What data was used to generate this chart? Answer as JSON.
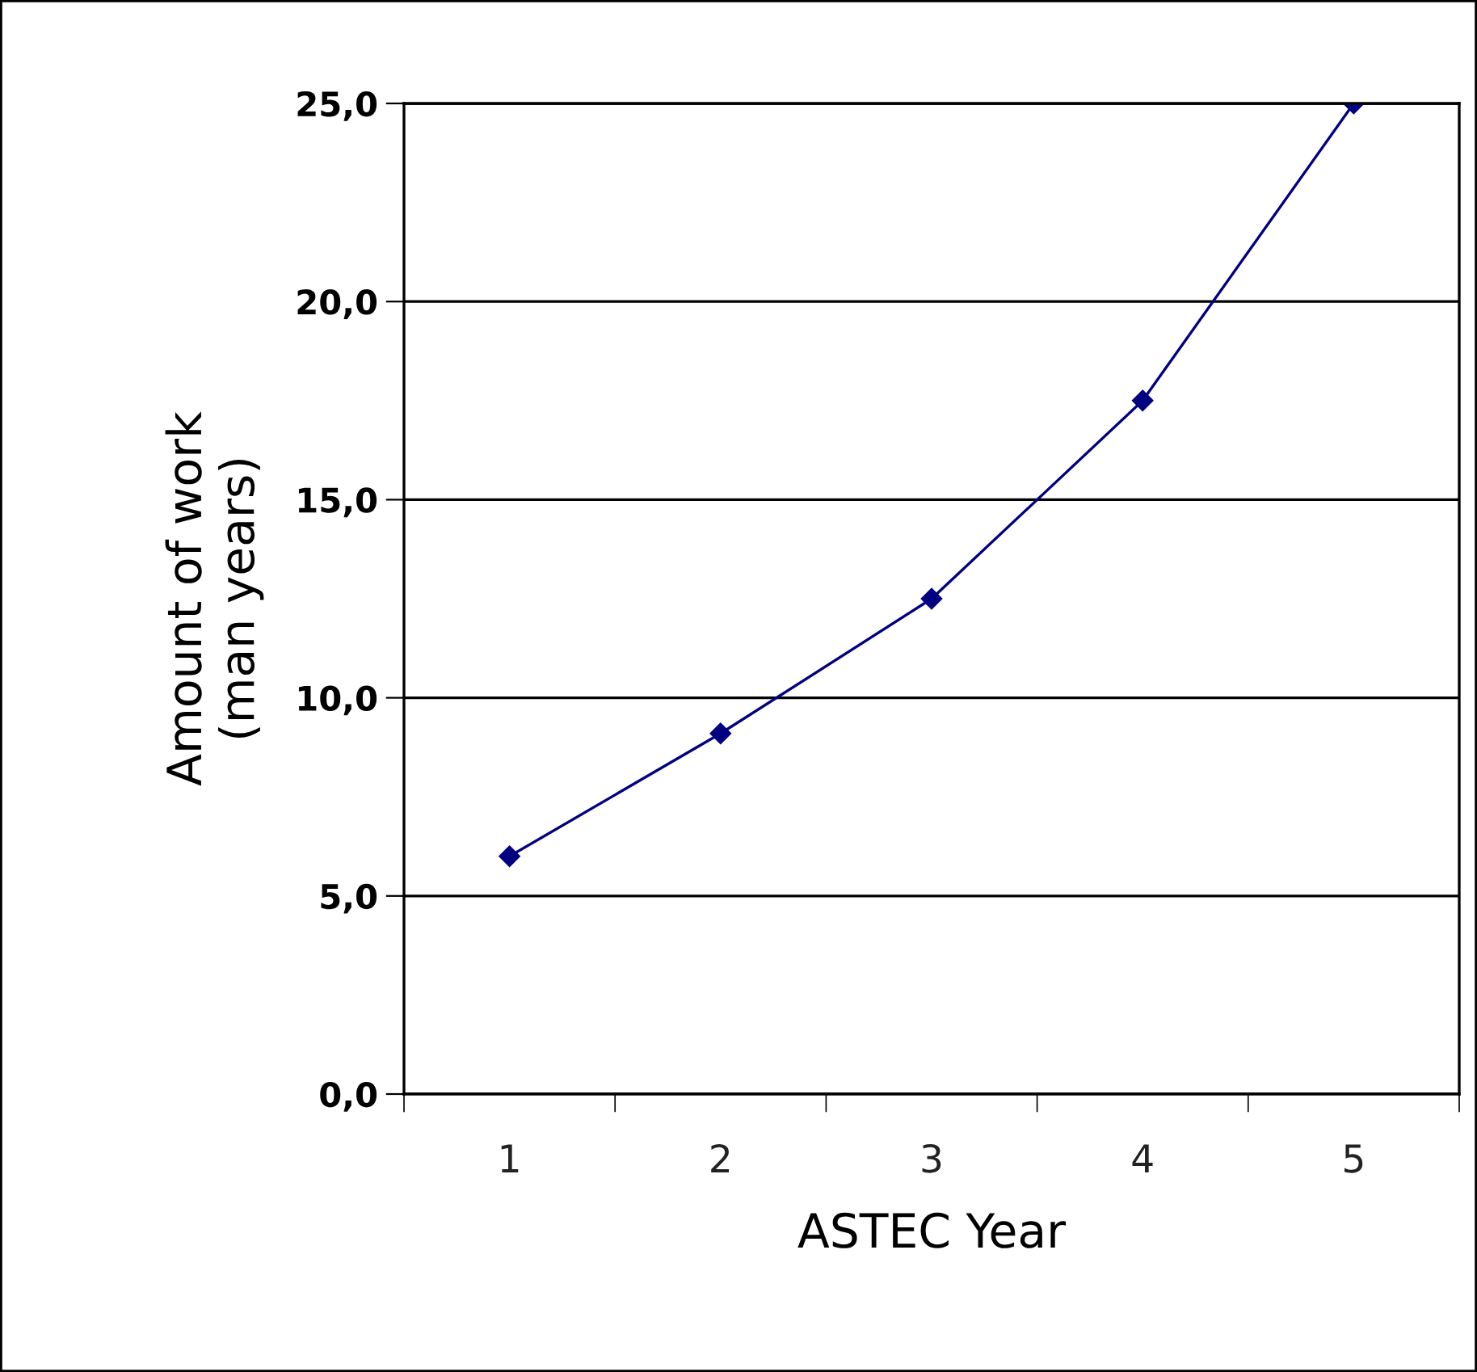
{
  "chart_data": {
    "type": "line",
    "xlabel": "ASTEC Year",
    "ylabel": "Amount of work\n(man years)",
    "categories": [
      "1",
      "2",
      "3",
      "4",
      "5"
    ],
    "series": [
      {
        "color": "#000080",
        "values": [
          6.0,
          9.1,
          12.5,
          17.5,
          25.0
        ]
      }
    ],
    "ylim": [
      0,
      25
    ],
    "yticks": [
      {
        "value": 0,
        "label": "0,0"
      },
      {
        "value": 5,
        "label": "5,0"
      },
      {
        "value": 10,
        "label": "10,0"
      },
      {
        "value": 15,
        "label": "15,0"
      },
      {
        "value": 20,
        "label": "20,0"
      },
      {
        "value": 25,
        "label": "25,0"
      }
    ],
    "grid": "y",
    "marker": "diamond",
    "line_style": "solid"
  }
}
